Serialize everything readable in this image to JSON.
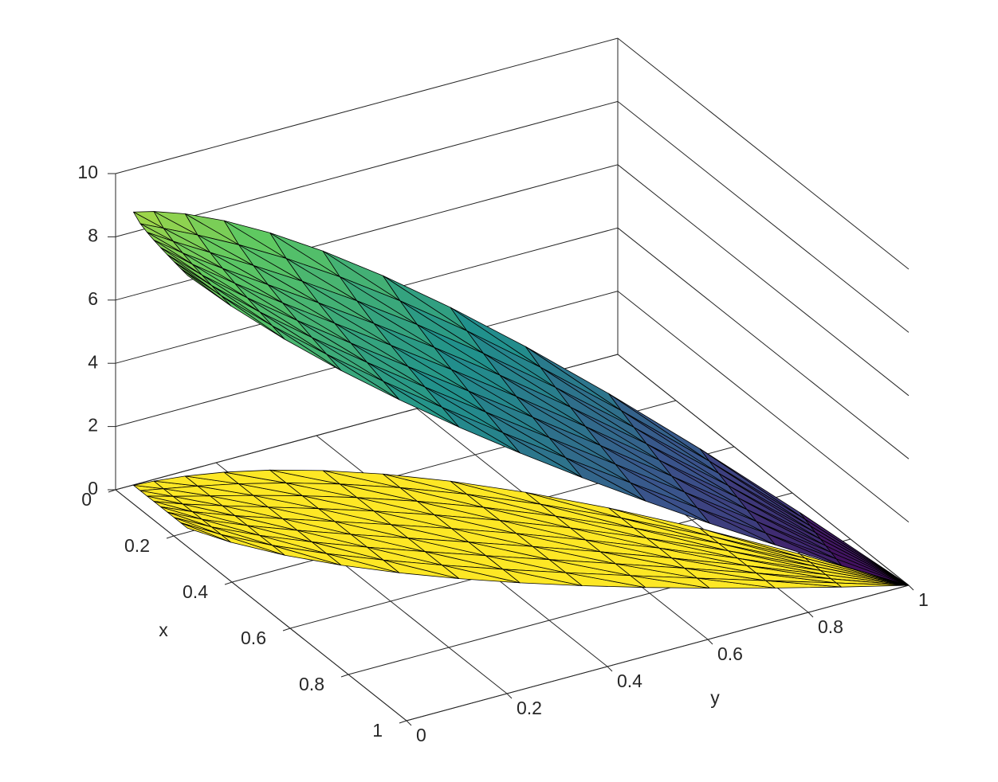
{
  "chart_data": {
    "type": "surface3d",
    "xlabel": "x",
    "ylabel": "y",
    "xlim": [
      0,
      1
    ],
    "ylim": [
      0,
      1
    ],
    "zlim": [
      0,
      10
    ],
    "xticks": [
      0,
      0.2,
      0.4,
      0.6,
      0.8,
      1
    ],
    "yticks": [
      0,
      0.2,
      0.4,
      0.6,
      0.8,
      1
    ],
    "zticks": [
      0,
      2,
      4,
      6,
      8,
      10
    ],
    "grid": true,
    "floor_color": "#fde725",
    "colormap": "viridis"
  }
}
